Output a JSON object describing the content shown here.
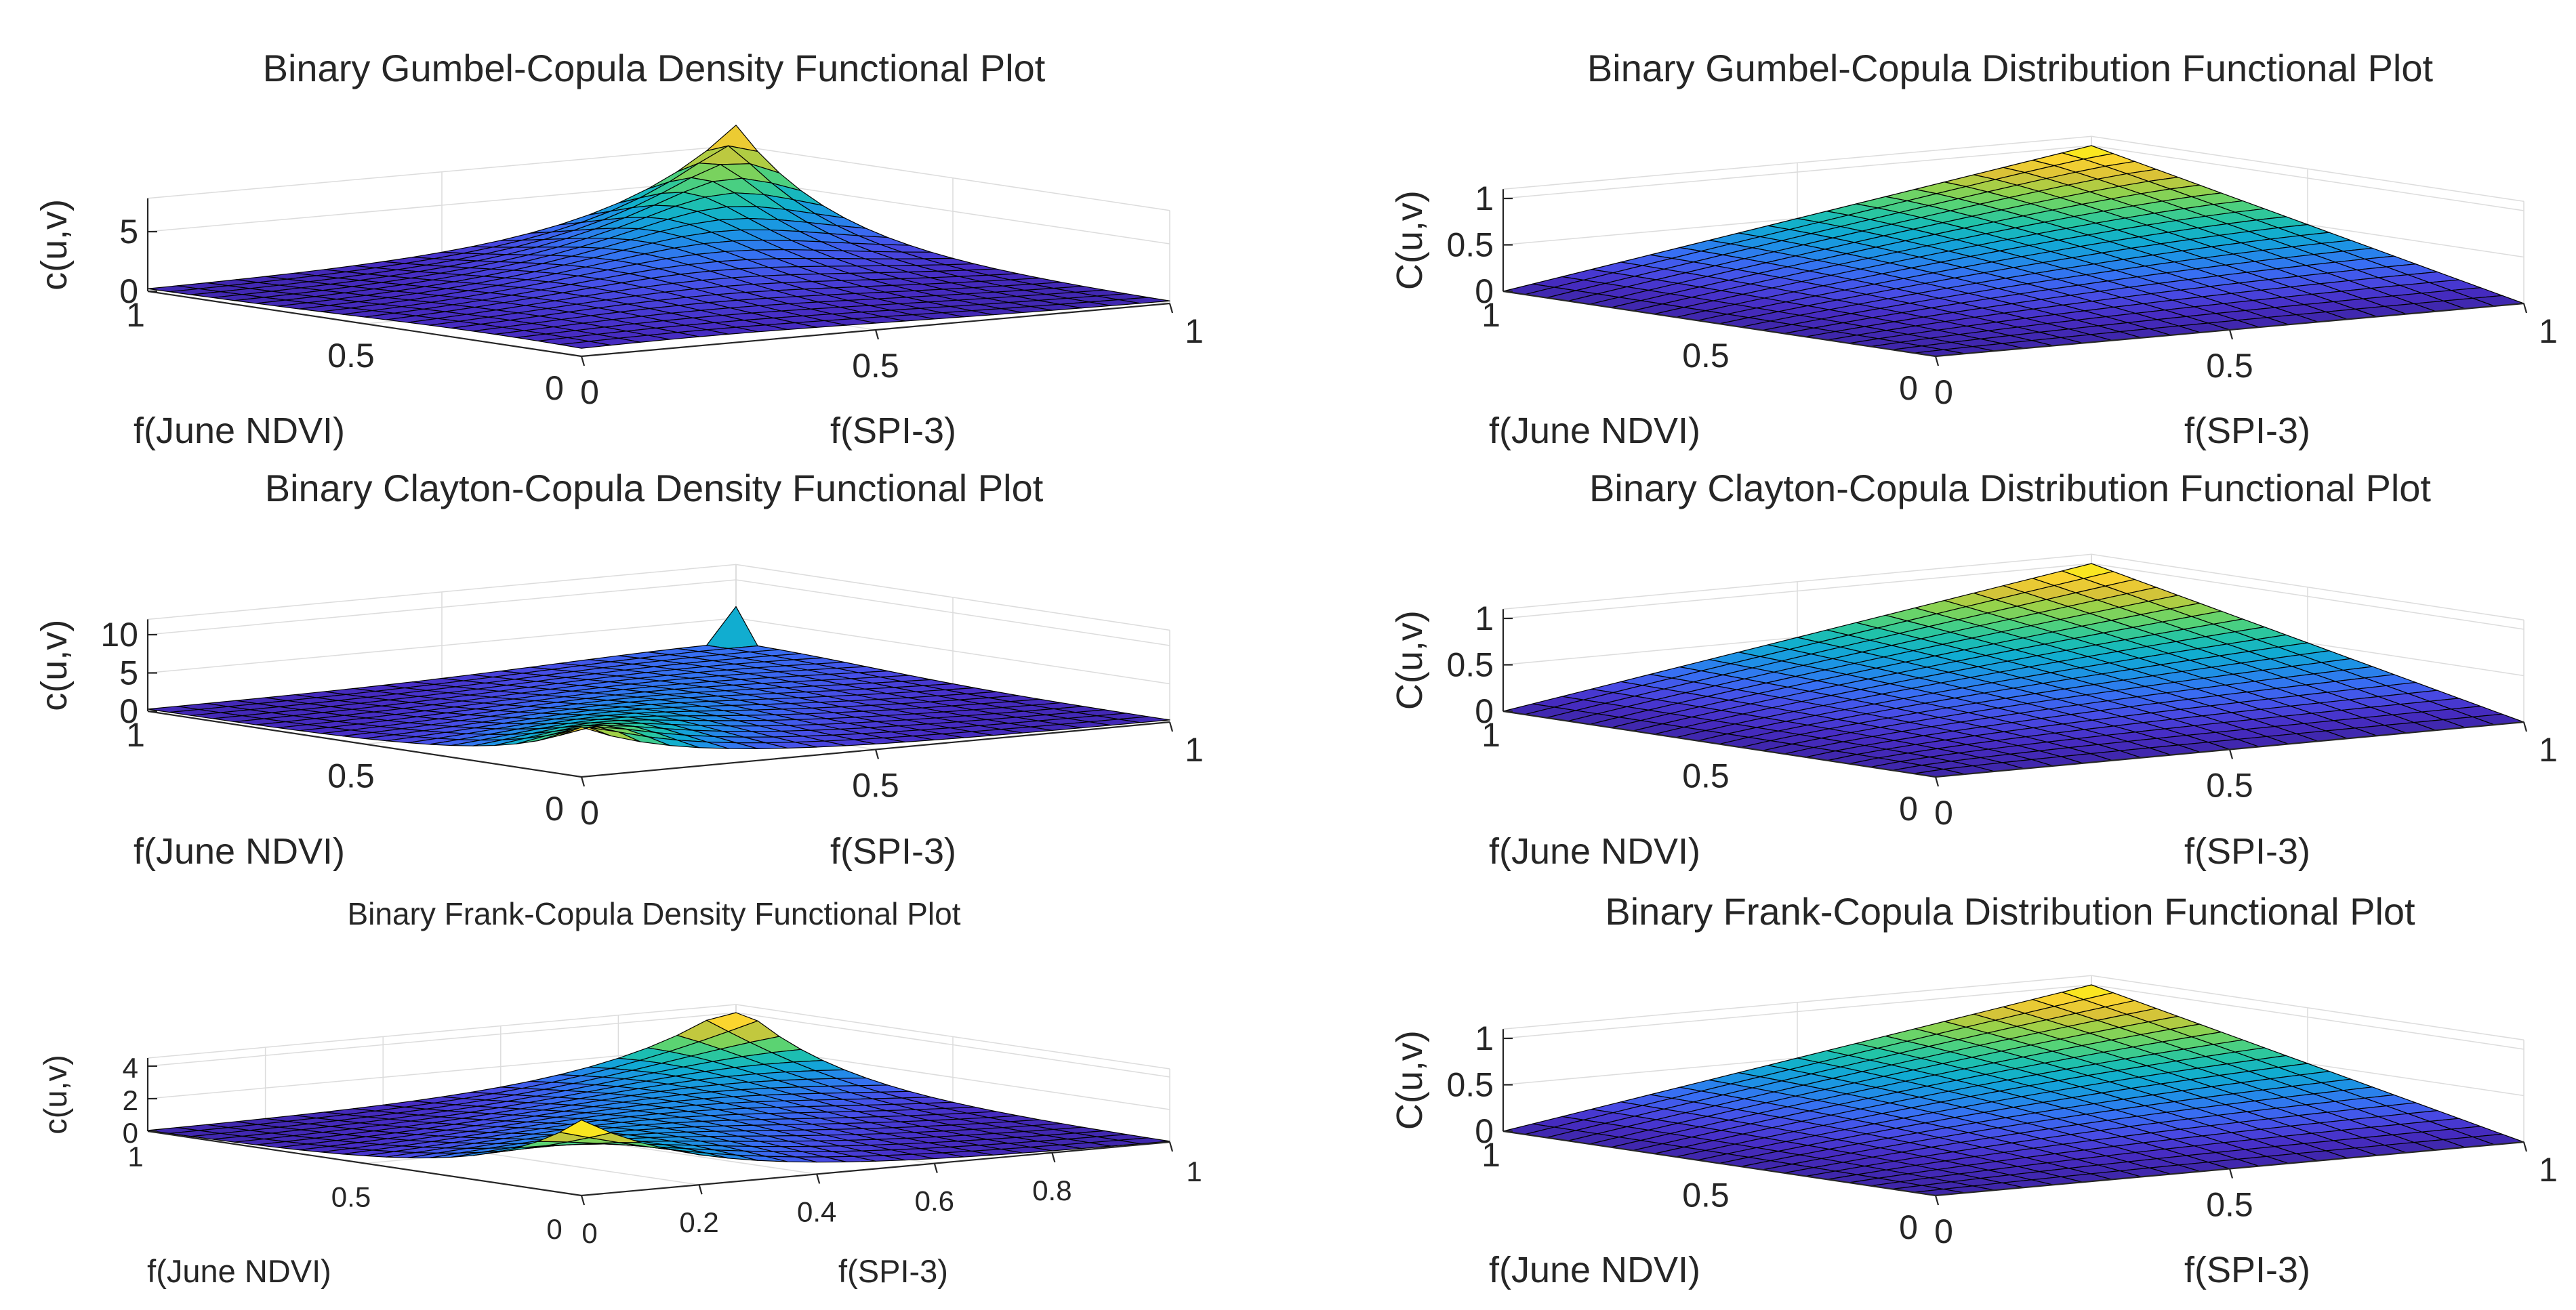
{
  "chart_data": [
    {
      "type": "surface",
      "function": "gumbel-density",
      "title": "Binary Gumbel-Copula Density Functional Plot",
      "xlabel": "f(SPI-3)",
      "ylabel": "f(June NDVI)",
      "zlabel": "c(u,v)",
      "xticks": [
        "0",
        "0.5",
        "1"
      ],
      "yticks": [
        "0",
        "0.5",
        "1"
      ],
      "zticks": [
        "0",
        "5"
      ],
      "xlim": [
        0,
        1
      ],
      "ylim": [
        0,
        1
      ],
      "zlim": [
        0,
        7.8
      ],
      "peak_value": 9.5,
      "grid": true,
      "colormap": "parula"
    },
    {
      "type": "surface",
      "function": "gumbel-distribution",
      "title": "Binary Gumbel-Copula Distribution Functional Plot",
      "xlabel": "f(SPI-3)",
      "ylabel": "f(June NDVI)",
      "zlabel": "C(u,v)",
      "xticks": [
        "0",
        "0.5",
        "1"
      ],
      "yticks": [
        "0",
        "0.5",
        "1"
      ],
      "zticks": [
        "0",
        "0.5",
        "1"
      ],
      "xlim": [
        0,
        1
      ],
      "ylim": [
        0,
        1
      ],
      "zlim": [
        0,
        1.1
      ],
      "grid": true,
      "colormap": "parula"
    },
    {
      "type": "surface",
      "function": "clayton-density",
      "title": "Binary Clayton-Copula Density Functional Plot",
      "xlabel": "f(SPI-3)",
      "ylabel": "f(June NDVI)",
      "zlabel": "c(u,v)",
      "xticks": [
        "0",
        "0.5",
        "1"
      ],
      "yticks": [
        "0",
        "0.5",
        "1"
      ],
      "zticks": [
        "0",
        "5",
        "10"
      ],
      "xlim": [
        0,
        1
      ],
      "ylim": [
        0,
        1
      ],
      "zlim": [
        0,
        12
      ],
      "peak_value": 6.5,
      "grid": true,
      "colormap": "parula"
    },
    {
      "type": "surface",
      "function": "clayton-distribution",
      "title": "Binary Clayton-Copula Distribution Functional Plot",
      "xlabel": "f(SPI-3)",
      "ylabel": "f(June NDVI)",
      "zlabel": "C(u,v)",
      "xticks": [
        "0",
        "0.5",
        "1"
      ],
      "yticks": [
        "0",
        "0.5",
        "1"
      ],
      "zticks": [
        "0",
        "0.5",
        "1"
      ],
      "xlim": [
        0,
        1
      ],
      "ylim": [
        0,
        1
      ],
      "zlim": [
        0,
        1.1
      ],
      "grid": true,
      "colormap": "parula"
    },
    {
      "type": "surface",
      "function": "frank-density",
      "title": "Binary Frank-Copula Density Functional Plot",
      "xlabel": "f(SPI-3)",
      "ylabel": "f(June NDVI)",
      "zlabel": "c(u,v)",
      "xticks": [
        "0",
        "0.2",
        "0.4",
        "0.6",
        "0.8",
        "1"
      ],
      "yticks": [
        "0",
        "0.5",
        "1"
      ],
      "zticks": [
        "0",
        "2",
        "4"
      ],
      "xlim": [
        0,
        1
      ],
      "ylim": [
        0,
        1
      ],
      "zlim": [
        0,
        4.5
      ],
      "peak_value": 4.0,
      "grid": true,
      "colormap": "parula"
    },
    {
      "type": "surface",
      "function": "frank-distribution",
      "title": "Binary Frank-Copula Distribution Functional Plot",
      "xlabel": "f(SPI-3)",
      "ylabel": "f(June NDVI)",
      "zlabel": "C(u,v)",
      "xticks": [
        "0",
        "0.5",
        "1"
      ],
      "yticks": [
        "0",
        "0.5",
        "1"
      ],
      "zticks": [
        "0",
        "0.5",
        "1"
      ],
      "xlim": [
        0,
        1
      ],
      "ylim": [
        0,
        1
      ],
      "zlim": [
        0,
        1.1
      ],
      "grid": true,
      "colormap": "parula"
    }
  ],
  "colors": {
    "axis": "#262626",
    "grid": "#dcdcdc",
    "edge": "#000000"
  }
}
